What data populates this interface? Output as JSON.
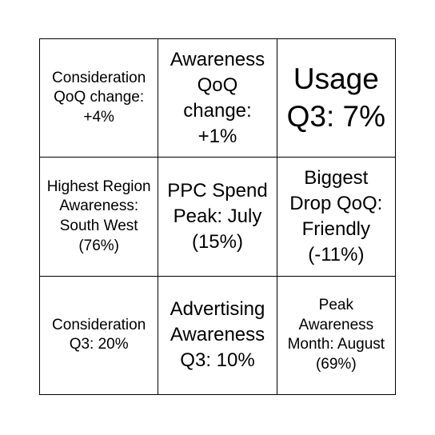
{
  "bingo": {
    "cells": [
      "Consideration QoQ change: +4%",
      "Awareness QoQ change: +1%",
      "Usage Q3: 7%",
      "Highest Region Awareness: South West (76%)",
      "PPC Spend Peak: July (15%)",
      "Biggest Drop QoQ: Friendly (-11%)",
      "Consideration Q3: 20%",
      "Advertising Awareness Q3: 10%",
      "Peak Awareness Month: August (69%)"
    ]
  }
}
